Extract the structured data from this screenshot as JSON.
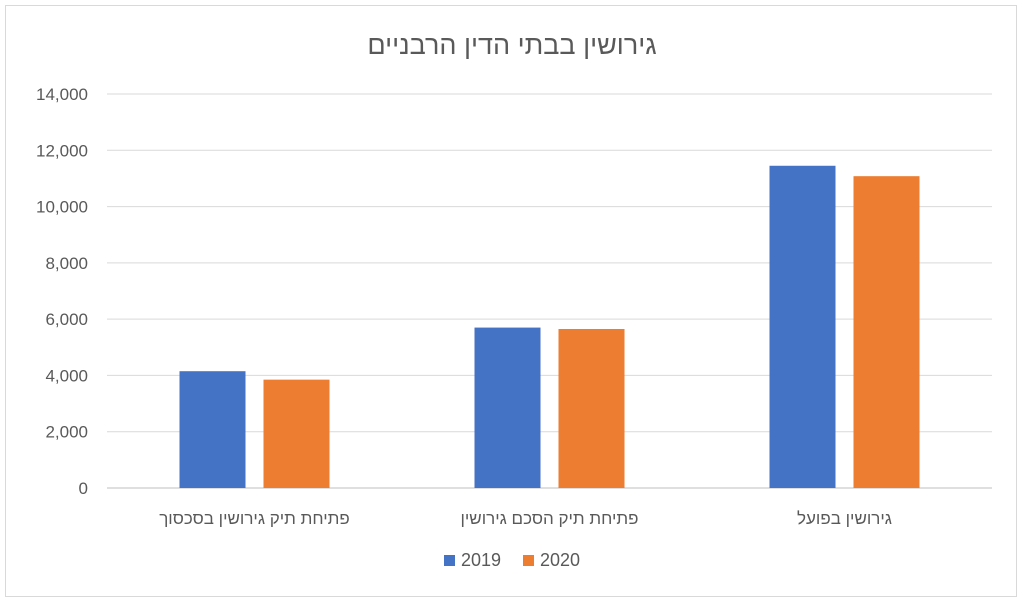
{
  "chart_data": {
    "type": "bar",
    "title": "גירושין בבתי הדין הרבניים",
    "categories": [
      "פתיחת תיק גירושין בסכסוך",
      "פתיחת תיק הסכם גירושין",
      "גירושין בפועל"
    ],
    "series": [
      {
        "name": "2019",
        "color": "#4472C4",
        "values": [
          4150,
          5700,
          11450
        ]
      },
      {
        "name": "2020",
        "color": "#ED7D31",
        "values": [
          3850,
          5650,
          11080
        ]
      }
    ],
    "ylim": [
      0,
      14000
    ],
    "yticks": [
      "0",
      "2,000",
      "4,000",
      "6,000",
      "8,000",
      "10,000",
      "12,000",
      "14,000"
    ],
    "grid": true,
    "legend": "bottom-center"
  }
}
